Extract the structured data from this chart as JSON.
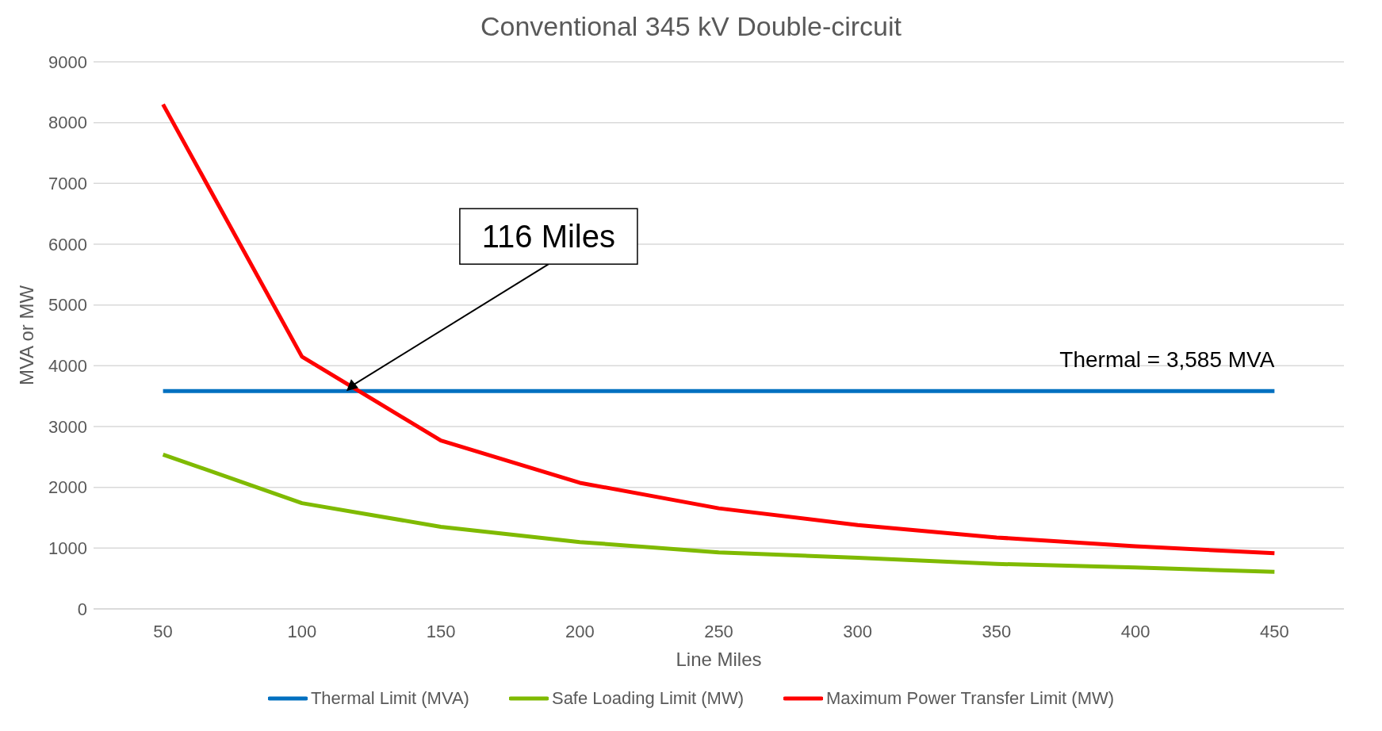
{
  "chart_data": {
    "type": "line",
    "title": "Conventional 345 kV Double-circuit",
    "xlabel": "Line Miles",
    "ylabel": "MVA or MW",
    "x": [
      50,
      100,
      150,
      200,
      250,
      300,
      350,
      400,
      450
    ],
    "xlim": [
      25,
      475
    ],
    "xticks": [
      50,
      100,
      150,
      200,
      250,
      300,
      350,
      400,
      450
    ],
    "ylim": [
      0,
      9000
    ],
    "yticks": [
      0,
      1000,
      2000,
      3000,
      4000,
      5000,
      6000,
      7000,
      8000,
      9000
    ],
    "grid": "y",
    "legend": "bottom",
    "marker": "none",
    "line_style": "solid",
    "series": [
      {
        "name": "Thermal Limit (MVA)",
        "color": "#0070c0",
        "values": [
          3585,
          3585,
          3585,
          3585,
          3585,
          3585,
          3585,
          3585,
          3585
        ]
      },
      {
        "name": "Safe Loading Limit (MW)",
        "color": "#7fba00",
        "values": [
          2540,
          1740,
          1350,
          1100,
          930,
          840,
          740,
          680,
          610
        ]
      },
      {
        "name": "Maximum Power Transfer Limit (MW)",
        "color": "#ff0000",
        "values": [
          8300,
          4150,
          2770,
          2075,
          1655,
          1380,
          1175,
          1030,
          915
        ]
      }
    ],
    "annotations": [
      {
        "text": "116 Miles",
        "x": 116,
        "y": 3585
      },
      {
        "text": "Thermal = 3,585 MVA",
        "x": 450,
        "y": 3585
      }
    ]
  }
}
